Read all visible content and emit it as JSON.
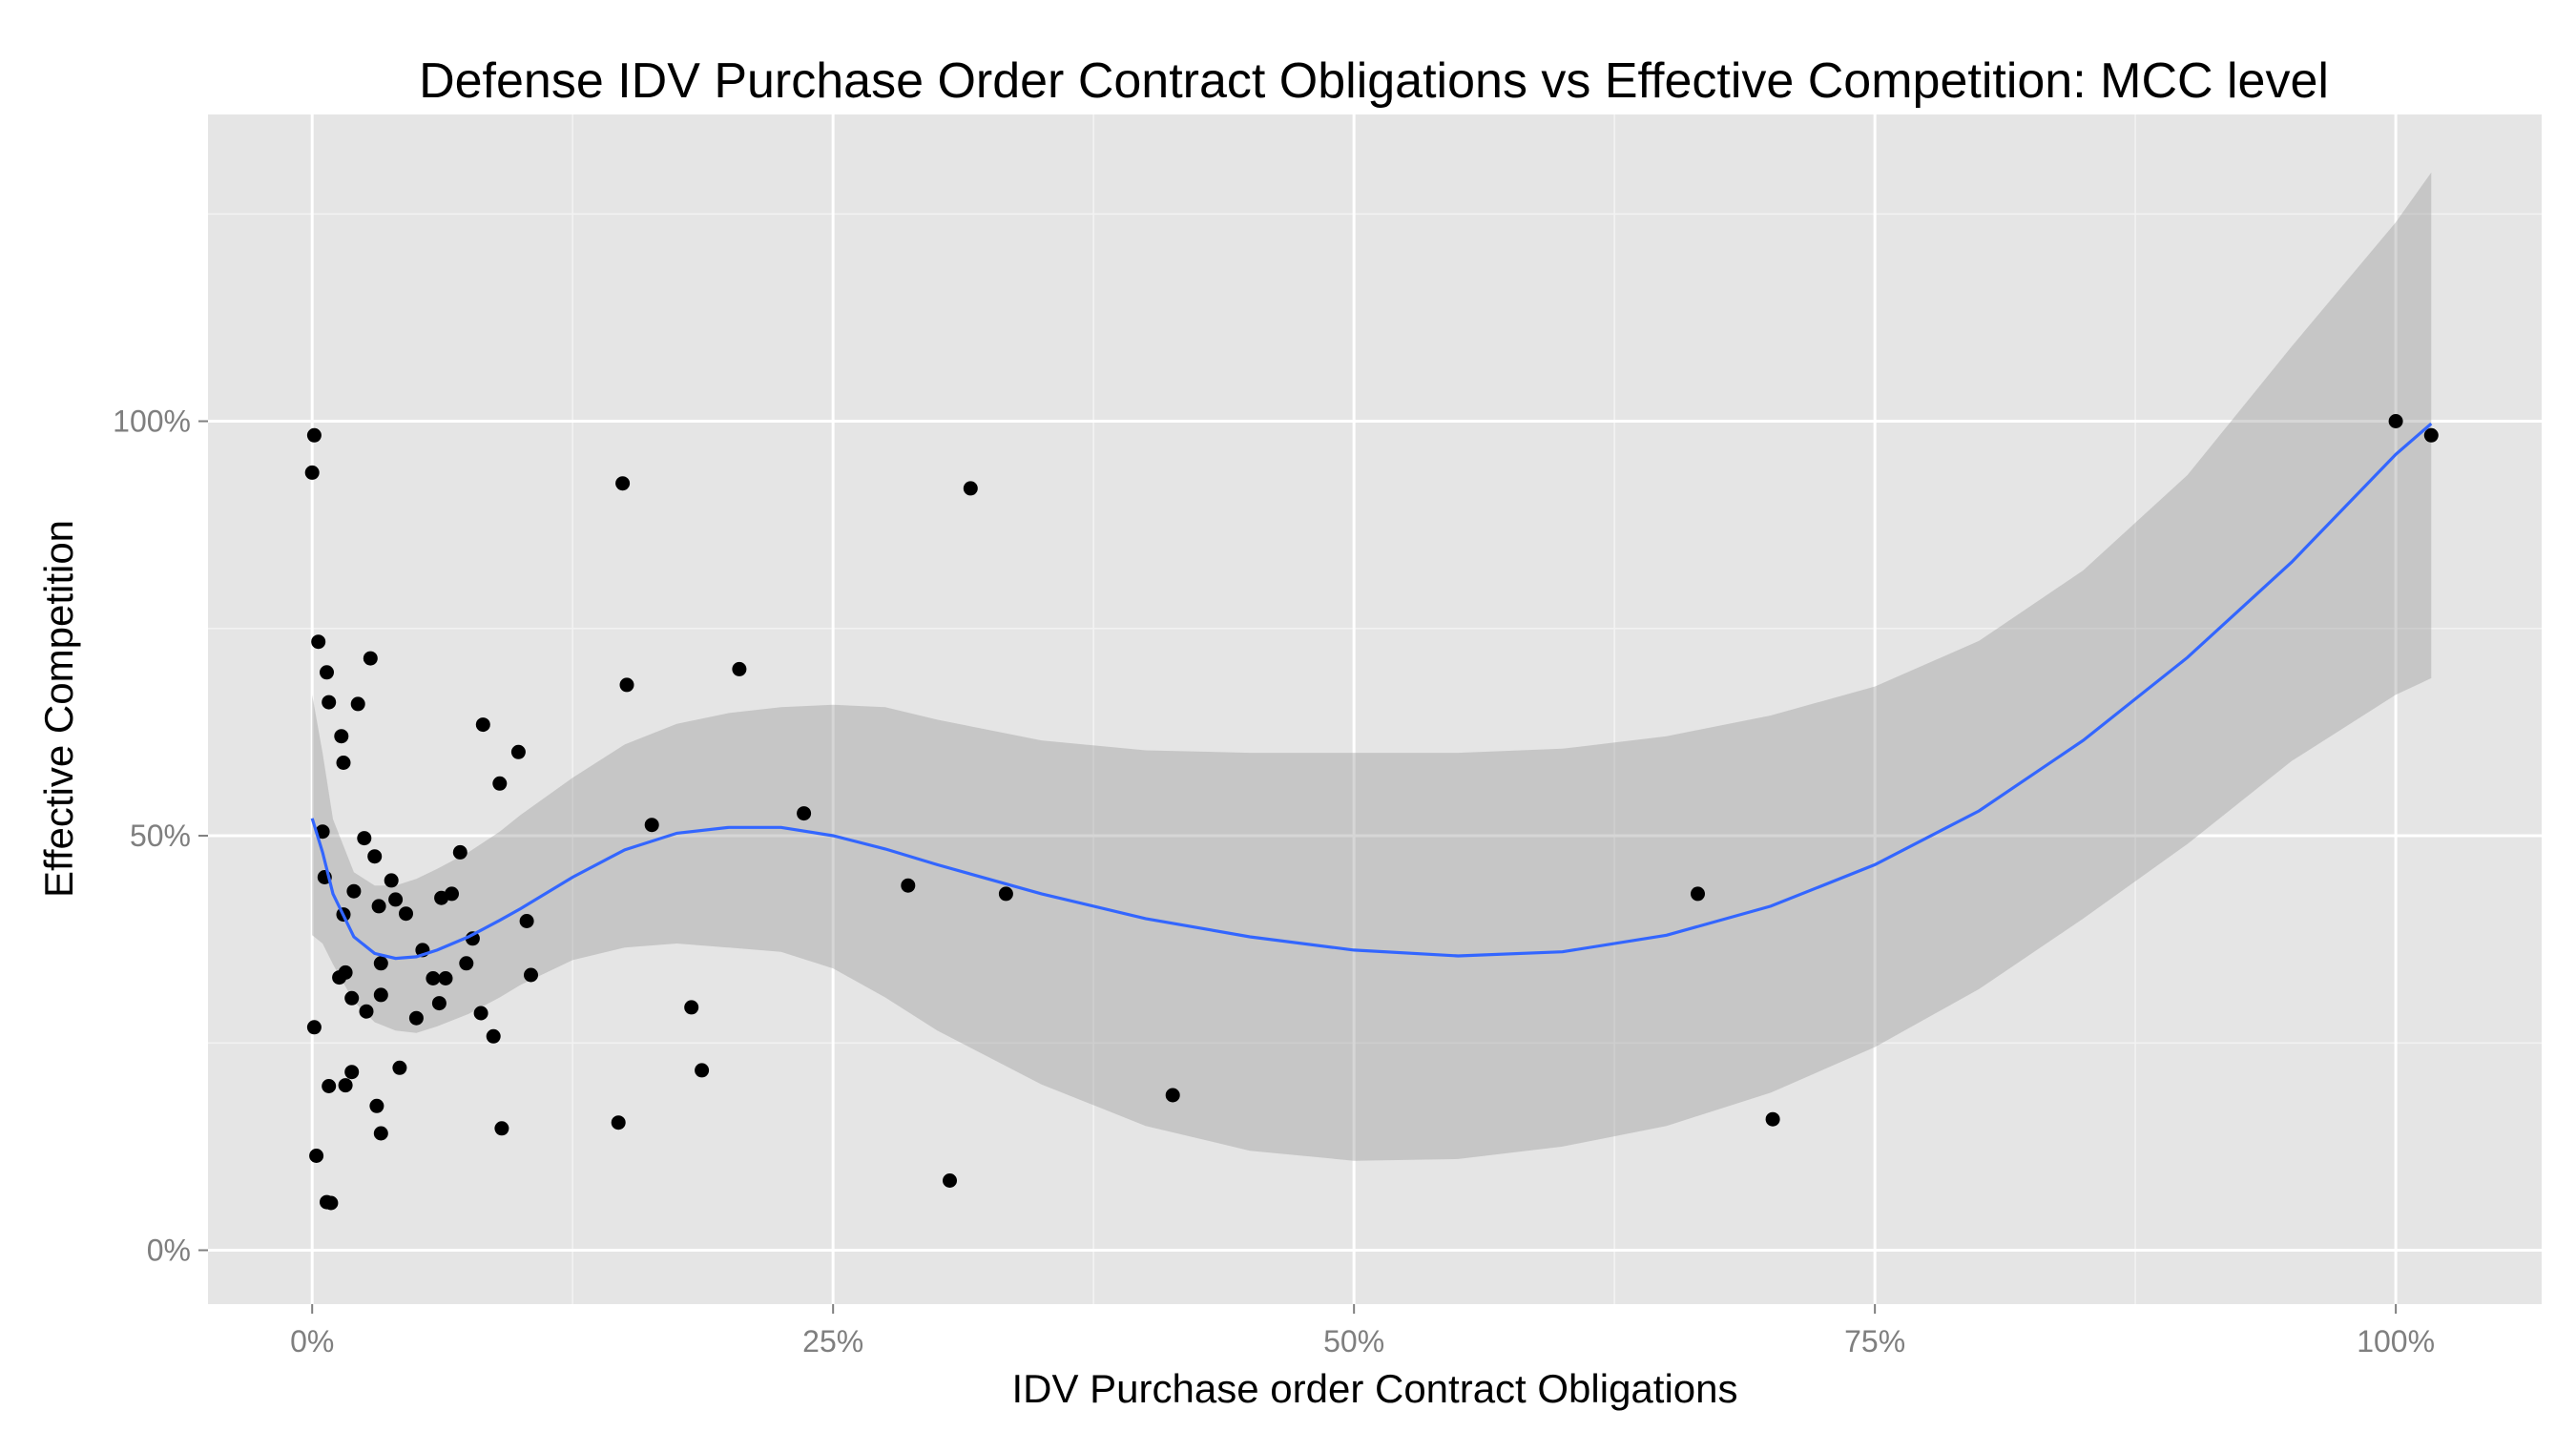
{
  "chart_data": {
    "type": "scatter",
    "title": "Defense IDV Purchase Order Contract Obligations vs Effective Competition: MCC level",
    "xlabel": "IDV Purchase order Contract Obligations",
    "ylabel": "Effective Competition",
    "xlim": [
      -0.05,
      1.07
    ],
    "ylim": [
      -0.065,
      1.37
    ],
    "x_ticks": [
      {
        "value": 0,
        "label": "0%"
      },
      {
        "value": 0.25,
        "label": "25%"
      },
      {
        "value": 0.5,
        "label": "50%"
      },
      {
        "value": 0.75,
        "label": "75%"
      },
      {
        "value": 1,
        "label": "100%"
      }
    ],
    "y_ticks": [
      {
        "value": 0,
        "label": "0%"
      },
      {
        "value": 0.5,
        "label": "50%"
      },
      {
        "value": 1,
        "label": "100%"
      }
    ],
    "grid": true,
    "colors": {
      "panel": "#e5e5e5",
      "grid_major": "#ffffff",
      "grid_minor": "#f2f2f2",
      "points": "#000000",
      "smooth_line": "#3366ff",
      "confidence_band": "#999999"
    },
    "points": [
      [
        0.001,
        0.983
      ],
      [
        0.0,
        0.938
      ],
      [
        0.003,
        0.734
      ],
      [
        0.007,
        0.697
      ],
      [
        0.008,
        0.661
      ],
      [
        0.014,
        0.62
      ],
      [
        0.015,
        0.588
      ],
      [
        0.022,
        0.659
      ],
      [
        0.028,
        0.714
      ],
      [
        0.005,
        0.505
      ],
      [
        0.006,
        0.45
      ],
      [
        0.015,
        0.405
      ],
      [
        0.02,
        0.433
      ],
      [
        0.025,
        0.497
      ],
      [
        0.03,
        0.475
      ],
      [
        0.032,
        0.415
      ],
      [
        0.038,
        0.446
      ],
      [
        0.04,
        0.423
      ],
      [
        0.045,
        0.406
      ],
      [
        0.016,
        0.335
      ],
      [
        0.013,
        0.329
      ],
      [
        0.019,
        0.304
      ],
      [
        0.026,
        0.288
      ],
      [
        0.033,
        0.346
      ],
      [
        0.033,
        0.308
      ],
      [
        0.001,
        0.269
      ],
      [
        0.008,
        0.198
      ],
      [
        0.016,
        0.199
      ],
      [
        0.019,
        0.215
      ],
      [
        0.042,
        0.22
      ],
      [
        0.031,
        0.174
      ],
      [
        0.033,
        0.141
      ],
      [
        0.002,
        0.114
      ],
      [
        0.007,
        0.058
      ],
      [
        0.009,
        0.057
      ],
      [
        0.05,
        0.28
      ],
      [
        0.053,
        0.362
      ],
      [
        0.058,
        0.328
      ],
      [
        0.061,
        0.298
      ],
      [
        0.064,
        0.328
      ],
      [
        0.062,
        0.425
      ],
      [
        0.067,
        0.43
      ],
      [
        0.071,
        0.48
      ],
      [
        0.074,
        0.346
      ],
      [
        0.077,
        0.376
      ],
      [
        0.081,
        0.286
      ],
      [
        0.082,
        0.634
      ],
      [
        0.087,
        0.258
      ],
      [
        0.09,
        0.563
      ],
      [
        0.091,
        0.147
      ],
      [
        0.099,
        0.601
      ],
      [
        0.103,
        0.397
      ],
      [
        0.105,
        0.332
      ],
      [
        0.147,
        0.154
      ],
      [
        0.149,
        0.925
      ],
      [
        0.151,
        0.682
      ],
      [
        0.163,
        0.513
      ],
      [
        0.182,
        0.293
      ],
      [
        0.187,
        0.217
      ],
      [
        0.205,
        0.701
      ],
      [
        0.236,
        0.527
      ],
      [
        0.286,
        0.44
      ],
      [
        0.306,
        0.084
      ],
      [
        0.316,
        0.919
      ],
      [
        0.333,
        0.43
      ],
      [
        0.413,
        0.187
      ],
      [
        0.665,
        0.43
      ],
      [
        0.701,
        0.158
      ],
      [
        1.0,
        1.0
      ],
      [
        1.017,
        0.983
      ]
    ],
    "smooth": {
      "x": [
        0.0,
        0.005,
        0.01,
        0.02,
        0.03,
        0.04,
        0.05,
        0.06,
        0.075,
        0.09,
        0.1,
        0.125,
        0.15,
        0.175,
        0.2,
        0.225,
        0.25,
        0.275,
        0.3,
        0.35,
        0.4,
        0.45,
        0.5,
        0.55,
        0.6,
        0.65,
        0.7,
        0.75,
        0.8,
        0.85,
        0.9,
        0.95,
        1.0,
        1.017
      ],
      "y": [
        0.521,
        0.48,
        0.43,
        0.378,
        0.358,
        0.352,
        0.354,
        0.362,
        0.378,
        0.398,
        0.412,
        0.45,
        0.483,
        0.503,
        0.51,
        0.51,
        0.5,
        0.484,
        0.465,
        0.43,
        0.4,
        0.378,
        0.362,
        0.355,
        0.36,
        0.38,
        0.415,
        0.465,
        0.53,
        0.615,
        0.715,
        0.83,
        0.96,
        0.997
      ],
      "lower": [
        0.38,
        0.37,
        0.345,
        0.3,
        0.275,
        0.265,
        0.262,
        0.27,
        0.285,
        0.305,
        0.32,
        0.35,
        0.365,
        0.37,
        0.365,
        0.36,
        0.34,
        0.305,
        0.265,
        0.2,
        0.15,
        0.12,
        0.108,
        0.11,
        0.125,
        0.15,
        0.19,
        0.245,
        0.315,
        0.4,
        0.49,
        0.59,
        0.67,
        0.69
      ],
      "upper": [
        0.67,
        0.6,
        0.52,
        0.456,
        0.44,
        0.44,
        0.448,
        0.46,
        0.48,
        0.505,
        0.525,
        0.57,
        0.61,
        0.635,
        0.648,
        0.655,
        0.658,
        0.655,
        0.64,
        0.615,
        0.603,
        0.6,
        0.6,
        0.6,
        0.605,
        0.62,
        0.645,
        0.68,
        0.735,
        0.82,
        0.935,
        1.09,
        1.24,
        1.3
      ]
    }
  }
}
